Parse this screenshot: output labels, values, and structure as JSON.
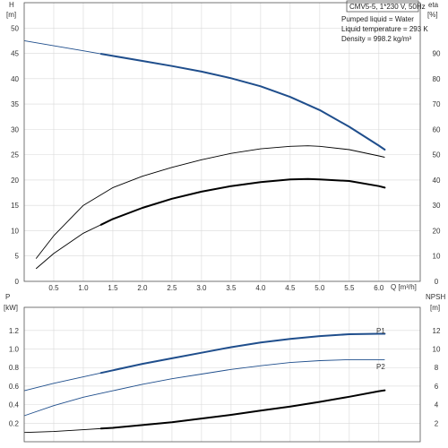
{
  "colors": {
    "blue": "#1f4e8c",
    "black": "#000000",
    "grid": "#d9d9d9",
    "frame": "#555555"
  },
  "info_box": {
    "header": "CMV5-5, 1*230 V, 50Hz",
    "lines": [
      "Pumped liquid = Water",
      "Liquid temperature = 293 K",
      "Density = 998.2 kg/m³"
    ]
  },
  "chart_data": [
    {
      "type": "line",
      "x_axis": {
        "label": "Q [m³/h]",
        "range": [
          0,
          6.7
        ],
        "ticks": [
          0.5,
          1.0,
          1.5,
          2.0,
          2.5,
          3.0,
          3.5,
          4.0,
          4.5,
          5.0,
          5.5,
          6.0
        ]
      },
      "y_left": {
        "label": "H",
        "unit": "[m]",
        "range": [
          0,
          55
        ],
        "ticks": [
          0,
          5,
          10,
          15,
          20,
          25,
          30,
          35,
          40,
          45,
          50
        ]
      },
      "y_right": {
        "label": "eta",
        "unit": "[%]",
        "range": [
          0,
          110
        ],
        "ticks": [
          0,
          10,
          20,
          30,
          40,
          50,
          60,
          70,
          80,
          90
        ]
      },
      "grid": true,
      "series": [
        {
          "axis": "left",
          "color": "blue",
          "style": "thin-to-thick",
          "thick_from": 1.3,
          "x": [
            0,
            0.5,
            1.0,
            1.5,
            2.0,
            2.5,
            3.0,
            3.5,
            4.0,
            4.5,
            5.0,
            5.5,
            6.0,
            6.1
          ],
          "y": [
            47.5,
            46.5,
            45.5,
            44.5,
            43.5,
            42.5,
            41.4,
            40.1,
            38.5,
            36.4,
            33.8,
            30.5,
            26.8,
            26.0
          ]
        },
        {
          "axis": "right",
          "color": "black",
          "style": "thin",
          "x": [
            0.2,
            0.5,
            1.0,
            1.5,
            2.0,
            2.5,
            3.0,
            3.5,
            4.0,
            4.5,
            4.8,
            5.0,
            5.5,
            6.0,
            6.1
          ],
          "y": [
            9.0,
            18.0,
            30.0,
            37.0,
            41.5,
            45.0,
            48.0,
            50.5,
            52.3,
            53.3,
            53.5,
            53.3,
            52.0,
            49.5,
            49.0
          ]
        },
        {
          "axis": "left",
          "color": "black",
          "style": "thin-to-thick",
          "thick_from": 1.3,
          "x": [
            0.2,
            0.5,
            1.0,
            1.5,
            2.0,
            2.5,
            3.0,
            3.5,
            4.0,
            4.5,
            4.8,
            5.0,
            5.5,
            6.0,
            6.1
          ],
          "y": [
            2.5,
            5.5,
            9.5,
            12.3,
            14.5,
            16.3,
            17.7,
            18.8,
            19.6,
            20.1,
            20.2,
            20.1,
            19.8,
            18.8,
            18.5
          ]
        }
      ]
    },
    {
      "type": "line",
      "x_axis": {
        "range": [
          0,
          6.7
        ]
      },
      "y_left": {
        "label": "P",
        "unit": "[kW]",
        "range": [
          0,
          1.45
        ],
        "ticks": [
          0.2,
          0.4,
          0.6,
          0.8,
          1.0,
          1.2
        ]
      },
      "y_right": {
        "label": "NPSH",
        "unit": "[m]",
        "range": [
          0,
          14.5
        ],
        "ticks": [
          2,
          4,
          6,
          8,
          10,
          12
        ]
      },
      "grid": true,
      "series": [
        {
          "name": "P1",
          "axis": "left",
          "color": "blue",
          "style": "thin-to-thick",
          "thick_from": 1.3,
          "x": [
            0,
            0.5,
            1.0,
            1.5,
            2.0,
            2.5,
            3.0,
            3.5,
            4.0,
            4.5,
            5.0,
            5.5,
            6.0,
            6.1
          ],
          "y": [
            0.55,
            0.63,
            0.7,
            0.77,
            0.84,
            0.9,
            0.96,
            1.02,
            1.07,
            1.11,
            1.14,
            1.16,
            1.165,
            1.165
          ]
        },
        {
          "name": "P2",
          "axis": "left",
          "color": "blue",
          "style": "thin",
          "x": [
            0,
            0.5,
            1.0,
            1.5,
            2.0,
            2.5,
            3.0,
            3.5,
            4.0,
            4.5,
            5.0,
            5.5,
            6.0,
            6.1
          ],
          "y": [
            0.28,
            0.39,
            0.48,
            0.55,
            0.62,
            0.68,
            0.73,
            0.78,
            0.82,
            0.855,
            0.875,
            0.885,
            0.885,
            0.885
          ]
        },
        {
          "axis": "right",
          "color": "black",
          "style": "thin-to-thick",
          "thick_from": 1.3,
          "x": [
            0,
            0.5,
            1.0,
            1.5,
            2.0,
            2.5,
            3.0,
            3.5,
            4.0,
            4.5,
            5.0,
            5.5,
            6.0,
            6.1
          ],
          "y": [
            1.0,
            1.1,
            1.3,
            1.5,
            1.8,
            2.1,
            2.5,
            2.9,
            3.35,
            3.8,
            4.3,
            4.85,
            5.45,
            5.55
          ]
        }
      ]
    }
  ]
}
